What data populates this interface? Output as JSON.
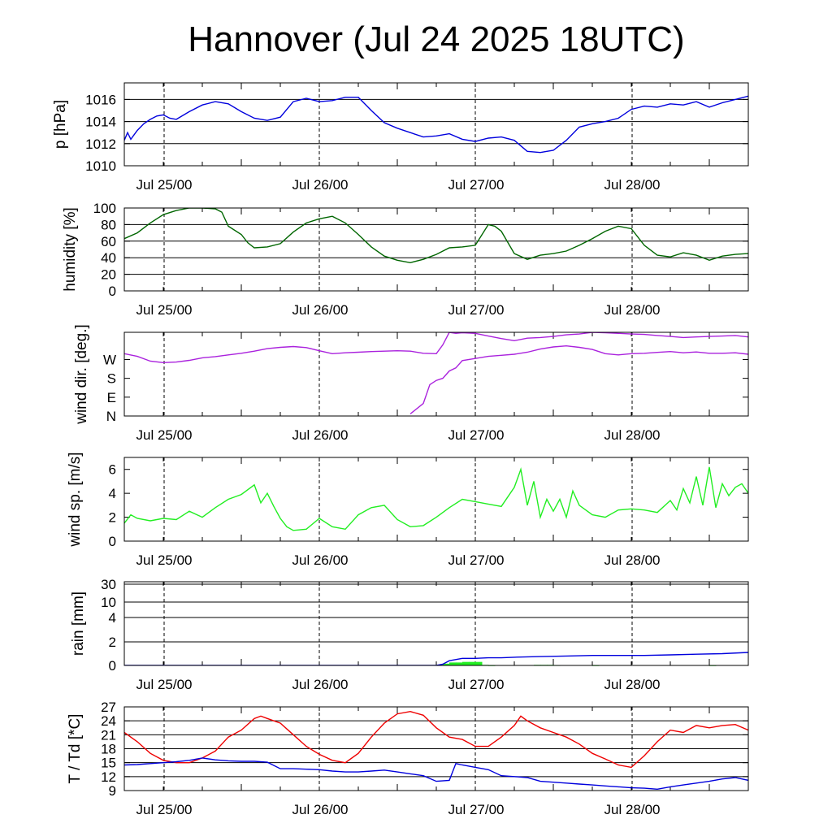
{
  "title": "Hannover (Jul 24 2025 18UTC)",
  "x_tick_labels": [
    "Jul 25/00",
    "Jul 26/00",
    "Jul 27/00",
    "Jul 28/00"
  ],
  "chart_data": [
    {
      "type": "line",
      "ylabel": "p [hPa]",
      "x_hours_axis": [
        0,
        96
      ],
      "ylim": [
        1010,
        1017.5
      ],
      "yticks": [
        1010,
        1012,
        1014,
        1016
      ],
      "grid": true,
      "series": [
        {
          "color": "#0000dd",
          "x": [
            0,
            0.5,
            1,
            2,
            3,
            4,
            5,
            6,
            7,
            8,
            10,
            12,
            14,
            16,
            18,
            20,
            22,
            24,
            26,
            28,
            30,
            32,
            34,
            36,
            38,
            40,
            42,
            44,
            46,
            48,
            50,
            52,
            54,
            56,
            58,
            60,
            62,
            64,
            66,
            68,
            70,
            72,
            74,
            76,
            78,
            80,
            82,
            84,
            86,
            88,
            90,
            92,
            94,
            96
          ],
          "y": [
            1012.3,
            1013.0,
            1012.4,
            1013.2,
            1013.8,
            1014.2,
            1014.5,
            1014.6,
            1014.3,
            1014.2,
            1014.9,
            1015.5,
            1015.8,
            1015.6,
            1014.9,
            1014.3,
            1014.1,
            1014.4,
            1015.8,
            1016.1,
            1015.8,
            1015.9,
            1016.2,
            1016.2,
            1015.0,
            1013.9,
            1013.4,
            1013.0,
            1012.6,
            1012.7,
            1012.9,
            1012.4,
            1012.2,
            1012.5,
            1012.6,
            1012.3,
            1011.3,
            1011.2,
            1011.4,
            1012.3,
            1013.5,
            1013.8,
            1014.0,
            1014.3,
            1015.1,
            1015.4,
            1015.3,
            1015.6,
            1015.5,
            1015.8,
            1015.3,
            1015.7,
            1016.0,
            1016.3
          ]
        }
      ]
    },
    {
      "type": "line",
      "ylabel": "humidity [%]",
      "x_hours_axis": [
        0,
        96
      ],
      "ylim": [
        0,
        100
      ],
      "yticks": [
        0,
        20,
        40,
        60,
        80,
        100
      ],
      "grid": true,
      "series": [
        {
          "color": "#006600",
          "x": [
            0,
            2,
            4,
            6,
            8,
            10,
            12,
            14,
            15,
            16,
            18,
            19,
            20,
            22,
            24,
            26,
            28,
            30,
            32,
            34,
            36,
            38,
            40,
            42,
            44,
            46,
            48,
            50,
            52,
            54,
            56,
            57,
            58,
            60,
            62,
            64,
            66,
            68,
            70,
            72,
            74,
            76,
            78,
            80,
            82,
            84,
            86,
            88,
            90,
            92,
            94,
            96
          ],
          "y": [
            63,
            70,
            82,
            92,
            97,
            100,
            100,
            99,
            95,
            78,
            68,
            58,
            52,
            53,
            57,
            71,
            82,
            87,
            90,
            82,
            68,
            53,
            42,
            37,
            34,
            38,
            44,
            52,
            53,
            55,
            80,
            78,
            72,
            45,
            38,
            43,
            45,
            48,
            55,
            63,
            72,
            78,
            75,
            55,
            43,
            41,
            46,
            43,
            37,
            42,
            44,
            45
          ]
        }
      ]
    },
    {
      "type": "line",
      "ylabel": "wind dir. [deg.]",
      "x_hours_axis": [
        0,
        96
      ],
      "ylim": [
        0,
        400
      ],
      "yticks": [
        0,
        90,
        180,
        270
      ],
      "ytick_labels": [
        "N",
        "E",
        "S",
        "W"
      ],
      "grid": false,
      "series": [
        {
          "color": "#aa22dd",
          "x": [
            0,
            2,
            4,
            6,
            8,
            10,
            12,
            14,
            16,
            18,
            20,
            22,
            24,
            26,
            28,
            30,
            32,
            34,
            36,
            38,
            40,
            42,
            44,
            46,
            48,
            49,
            50,
            51,
            52,
            54,
            56,
            58,
            60,
            62,
            64,
            66,
            68,
            70,
            72,
            74,
            76,
            78,
            80,
            82,
            84,
            86,
            88,
            90,
            92,
            94,
            96
          ],
          "y": [
            298,
            285,
            262,
            255,
            258,
            266,
            278,
            284,
            292,
            300,
            310,
            322,
            328,
            332,
            327,
            312,
            298,
            302,
            305,
            308,
            310,
            312,
            310,
            300,
            298,
            340,
            400,
            395,
            398,
            395,
            382,
            370,
            360,
            372,
            375,
            380,
            388,
            392,
            400,
            398,
            395,
            392,
            390,
            385,
            380,
            375,
            378,
            380,
            382,
            385,
            378
          ]
        },
        {
          "color": "#aa22dd",
          "x": [
            44,
            46,
            47,
            48,
            49,
            50,
            51,
            52,
            54,
            56,
            58,
            60,
            62,
            64,
            66,
            68,
            70,
            72,
            74,
            76,
            78,
            80,
            82,
            84,
            86,
            88,
            90,
            92,
            94,
            96
          ],
          "y": [
            10,
            60,
            150,
            170,
            180,
            215,
            230,
            265,
            275,
            285,
            290,
            295,
            305,
            320,
            330,
            335,
            328,
            318,
            298,
            292,
            298,
            300,
            304,
            308,
            302,
            306,
            300,
            300,
            302,
            295
          ]
        }
      ]
    },
    {
      "type": "line",
      "ylabel": "wind sp. [m/s]",
      "x_hours_axis": [
        0,
        96
      ],
      "ylim": [
        0,
        7
      ],
      "yticks": [
        0.0,
        2.0,
        4.0,
        6.0
      ],
      "grid": false,
      "series": [
        {
          "color": "#22ee22",
          "x": [
            0,
            1,
            2,
            4,
            6,
            8,
            10,
            12,
            14,
            16,
            18,
            20,
            21,
            22,
            23,
            24,
            25,
            26,
            28,
            30,
            32,
            34,
            36,
            38,
            40,
            42,
            44,
            46,
            48,
            50,
            52,
            54,
            56,
            58,
            60,
            61,
            62,
            63,
            64,
            65,
            66,
            67,
            68,
            69,
            70,
            72,
            74,
            76,
            78,
            80,
            82,
            84,
            85,
            86,
            87,
            88,
            89,
            90,
            91,
            92,
            93,
            94,
            95,
            96
          ],
          "y": [
            1.5,
            2.2,
            1.9,
            1.7,
            1.9,
            1.8,
            2.5,
            2.0,
            2.8,
            3.5,
            3.9,
            4.7,
            3.2,
            4.0,
            2.9,
            1.9,
            1.2,
            0.9,
            1.0,
            1.9,
            1.2,
            1.0,
            2.2,
            2.8,
            3.0,
            1.8,
            1.2,
            1.3,
            2.0,
            2.8,
            3.5,
            3.3,
            3.1,
            2.9,
            4.5,
            6.0,
            3.0,
            5.0,
            2.0,
            3.5,
            2.5,
            3.5,
            2.0,
            4.2,
            3.0,
            2.2,
            2.0,
            2.6,
            2.7,
            2.6,
            2.4,
            3.4,
            2.6,
            4.4,
            3.2,
            5.4,
            3.0,
            6.2,
            2.8,
            4.8,
            3.8,
            4.5,
            4.8,
            4.0
          ]
        }
      ]
    },
    {
      "type": "line",
      "ylabel": "rain [mm]",
      "x_hours_axis": [
        0,
        96
      ],
      "yticks": [
        0,
        2,
        4,
        10,
        30
      ],
      "grid": true,
      "series": [
        {
          "color": "#0000dd",
          "x": [
            0,
            48,
            49,
            50,
            52,
            54,
            56,
            58,
            60,
            64,
            68,
            72,
            76,
            80,
            84,
            88,
            92,
            96
          ],
          "y": [
            0,
            0,
            0.1,
            0.4,
            0.6,
            0.6,
            0.65,
            0.65,
            0.7,
            0.75,
            0.8,
            0.85,
            0.85,
            0.85,
            0.9,
            0.95,
            1.0,
            1.1
          ]
        }
      ],
      "bars": {
        "color": "#22ee22",
        "x": [
          48,
          49,
          50,
          51,
          52,
          53,
          54,
          55,
          56,
          63,
          64,
          65,
          66,
          72,
          90
        ],
        "y": [
          0.05,
          0.15,
          0.25,
          0.25,
          0.3,
          0.3,
          0.3,
          0.05,
          0.02,
          0.05,
          0.05,
          0.05,
          0.03,
          0.02,
          0.02
        ]
      }
    },
    {
      "type": "line",
      "ylabel": "T / Td [*C]",
      "x_hours_axis": [
        0,
        96
      ],
      "ylim": [
        9,
        27
      ],
      "yticks": [
        9,
        12,
        15,
        18,
        21,
        24,
        27
      ],
      "grid": true,
      "series": [
        {
          "color": "#ee0000",
          "x": [
            0,
            2,
            4,
            6,
            8,
            10,
            12,
            14,
            15,
            16,
            18,
            20,
            21,
            22,
            24,
            26,
            28,
            30,
            32,
            34,
            36,
            38,
            40,
            42,
            44,
            46,
            48,
            50,
            52,
            54,
            56,
            58,
            60,
            61,
            62,
            64,
            66,
            68,
            70,
            72,
            74,
            76,
            78,
            80,
            82,
            84,
            86,
            88,
            90,
            92,
            94,
            96
          ],
          "y": [
            21.5,
            19.5,
            17.0,
            15.5,
            15.0,
            15.0,
            16.0,
            17.5,
            19.0,
            20.5,
            22.0,
            24.5,
            25.0,
            24.5,
            23.5,
            21.0,
            18.5,
            16.8,
            15.5,
            15.0,
            17.0,
            20.5,
            23.5,
            25.5,
            26.0,
            25.2,
            22.5,
            20.5,
            20.0,
            18.5,
            18.5,
            20.5,
            23.0,
            25.0,
            24.0,
            22.5,
            21.5,
            20.5,
            19.0,
            17.0,
            15.8,
            14.5,
            14.0,
            16.5,
            19.5,
            22.0,
            21.5,
            23.0,
            22.5,
            23.0,
            23.2,
            22.0
          ]
        },
        {
          "color": "#0000dd",
          "x": [
            0,
            2,
            4,
            6,
            8,
            10,
            12,
            14,
            16,
            18,
            20,
            22,
            24,
            26,
            28,
            30,
            32,
            34,
            36,
            38,
            40,
            42,
            44,
            46,
            48,
            50,
            51,
            52,
            54,
            56,
            58,
            60,
            62,
            64,
            66,
            68,
            70,
            72,
            74,
            76,
            78,
            80,
            82,
            84,
            86,
            88,
            90,
            92,
            94,
            96
          ],
          "y": [
            14.5,
            14.6,
            14.8,
            15.0,
            15.2,
            15.5,
            16.0,
            15.6,
            15.4,
            15.3,
            15.3,
            15.1,
            13.7,
            13.7,
            13.6,
            13.5,
            13.2,
            13.0,
            13.0,
            13.2,
            13.4,
            13.0,
            12.6,
            12.2,
            11.0,
            11.2,
            14.8,
            14.5,
            14.0,
            13.5,
            12.2,
            12.0,
            11.8,
            11.0,
            10.8,
            10.6,
            10.4,
            10.2,
            10.0,
            9.8,
            9.6,
            9.5,
            9.3,
            9.8,
            10.2,
            10.6,
            11.0,
            11.5,
            11.8,
            11.2
          ]
        }
      ]
    }
  ]
}
